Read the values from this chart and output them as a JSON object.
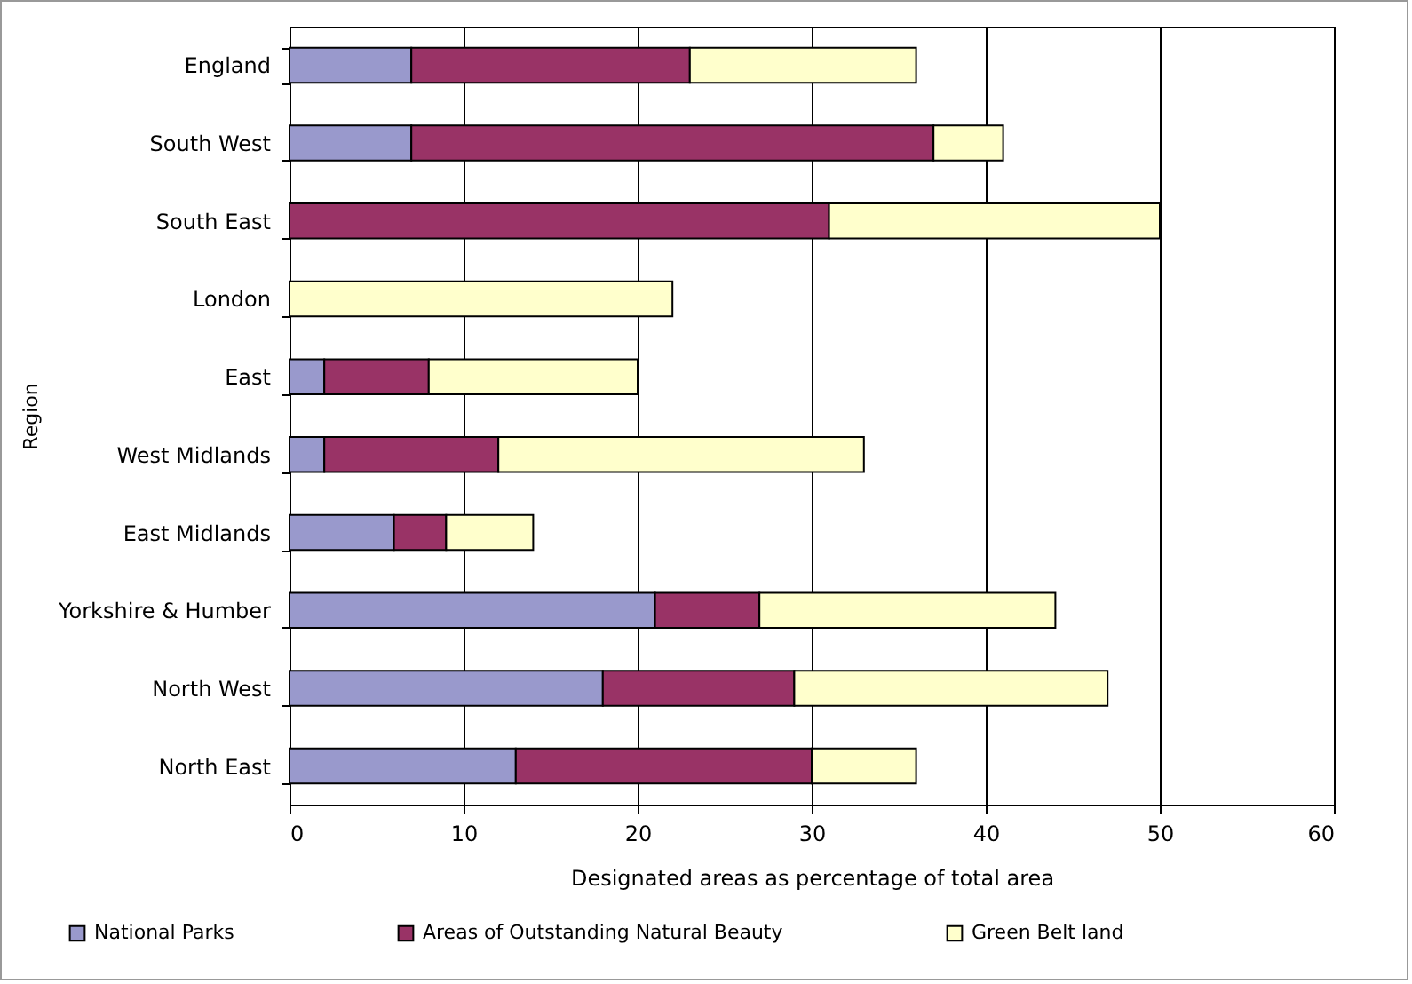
{
  "chart_data": {
    "type": "bar",
    "orientation": "horizontal",
    "stacked": true,
    "categories": [
      "England",
      "South West",
      "South East",
      "London",
      "East",
      "West Midlands",
      "East Midlands",
      "Yorkshire & Humber",
      "North West",
      "North East"
    ],
    "series": [
      {
        "name": "National Parks",
        "color": "#9999cc",
        "values": [
          7,
          7,
          0,
          0,
          2,
          2,
          6,
          21,
          18,
          13
        ]
      },
      {
        "name": "Areas of Outstanding Natural Beauty",
        "color": "#993366",
        "values": [
          16,
          30,
          31,
          0,
          6,
          10,
          3,
          6,
          11,
          17
        ]
      },
      {
        "name": "Green Belt land",
        "color": "#ffffcc",
        "values": [
          13,
          4,
          19,
          22,
          12,
          21,
          5,
          17,
          18,
          6
        ]
      }
    ],
    "xlabel": "Designated areas as percentage of total area",
    "ylabel": "Region",
    "xlim": [
      0,
      60
    ],
    "xticks": [
      0,
      10,
      20,
      30,
      40,
      50,
      60
    ],
    "grid": "x",
    "legend": "bottom"
  }
}
